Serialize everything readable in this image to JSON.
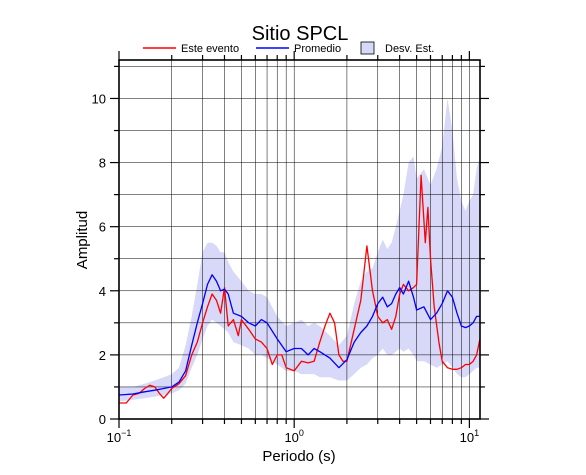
{
  "chart_data": {
    "type": "line",
    "title": "Sitio SPCL",
    "xlabel": "Periodo (s)",
    "ylabel": "Amplitud",
    "x_scale": "log",
    "xlim": [
      0.1,
      11.5
    ],
    "ylim": [
      0,
      11.2
    ],
    "grid": true,
    "legend_position": "top",
    "x_ticks": [
      {
        "value": 0.1,
        "base": "10",
        "exp": "−1"
      },
      {
        "value": 1,
        "base": "10",
        "exp": "0"
      },
      {
        "value": 10,
        "base": "10",
        "exp": "1"
      }
    ],
    "y_ticks": [
      0,
      2,
      4,
      6,
      8,
      10
    ],
    "legend": {
      "este_evento": "Este evento",
      "promedio": "Promedio",
      "desv_est": "Desv. Est."
    },
    "colors": {
      "este_evento": "#ff0000",
      "promedio": "#0000ff",
      "band_fill": "#d8d8f8",
      "band_stroke": "#000000"
    },
    "series": [
      {
        "name": "Este evento",
        "color": "#ff0000",
        "points": [
          [
            0.1,
            0.5
          ],
          [
            0.11,
            0.5
          ],
          [
            0.12,
            0.75
          ],
          [
            0.13,
            0.8
          ],
          [
            0.14,
            0.95
          ],
          [
            0.15,
            1.05
          ],
          [
            0.16,
            1.0
          ],
          [
            0.17,
            0.8
          ],
          [
            0.18,
            0.65
          ],
          [
            0.19,
            0.8
          ],
          [
            0.2,
            0.95
          ],
          [
            0.22,
            1.1
          ],
          [
            0.24,
            1.35
          ],
          [
            0.26,
            2.0
          ],
          [
            0.28,
            2.4
          ],
          [
            0.3,
            3.0
          ],
          [
            0.32,
            3.5
          ],
          [
            0.34,
            3.9
          ],
          [
            0.36,
            3.7
          ],
          [
            0.38,
            3.3
          ],
          [
            0.4,
            4.1
          ],
          [
            0.42,
            2.9
          ],
          [
            0.45,
            3.1
          ],
          [
            0.48,
            2.6
          ],
          [
            0.5,
            3.1
          ],
          [
            0.55,
            2.8
          ],
          [
            0.6,
            2.5
          ],
          [
            0.65,
            2.4
          ],
          [
            0.7,
            2.2
          ],
          [
            0.75,
            1.7
          ],
          [
            0.8,
            2.0
          ],
          [
            0.85,
            2.0
          ],
          [
            0.9,
            1.6
          ],
          [
            1.0,
            1.5
          ],
          [
            1.1,
            1.8
          ],
          [
            1.2,
            1.75
          ],
          [
            1.3,
            1.8
          ],
          [
            1.4,
            2.4
          ],
          [
            1.5,
            2.9
          ],
          [
            1.6,
            3.3
          ],
          [
            1.7,
            3.0
          ],
          [
            1.8,
            2.0
          ],
          [
            1.9,
            1.8
          ],
          [
            2.0,
            1.8
          ],
          [
            2.2,
            2.8
          ],
          [
            2.4,
            3.7
          ],
          [
            2.6,
            5.4
          ],
          [
            2.8,
            4.0
          ],
          [
            3.0,
            3.2
          ],
          [
            3.2,
            3.0
          ],
          [
            3.4,
            3.1
          ],
          [
            3.6,
            2.8
          ],
          [
            3.8,
            3.2
          ],
          [
            4.0,
            3.9
          ],
          [
            4.2,
            4.2
          ],
          [
            4.5,
            4.0
          ],
          [
            4.8,
            4.1
          ],
          [
            5.0,
            4.2
          ],
          [
            5.3,
            7.6
          ],
          [
            5.6,
            5.5
          ],
          [
            5.8,
            6.6
          ],
          [
            6.0,
            5.0
          ],
          [
            6.3,
            3.5
          ],
          [
            6.7,
            2.4
          ],
          [
            7.0,
            1.8
          ],
          [
            7.5,
            1.6
          ],
          [
            8.0,
            1.55
          ],
          [
            8.5,
            1.55
          ],
          [
            9.0,
            1.6
          ],
          [
            9.5,
            1.7
          ],
          [
            10.0,
            1.7
          ],
          [
            10.5,
            1.8
          ],
          [
            11.0,
            2.0
          ],
          [
            11.5,
            2.5
          ]
        ]
      },
      {
        "name": "Promedio",
        "color": "#0000ff",
        "points": [
          [
            0.1,
            0.75
          ],
          [
            0.12,
            0.78
          ],
          [
            0.14,
            0.85
          ],
          [
            0.16,
            0.9
          ],
          [
            0.18,
            0.95
          ],
          [
            0.2,
            1.0
          ],
          [
            0.22,
            1.15
          ],
          [
            0.24,
            1.5
          ],
          [
            0.26,
            2.3
          ],
          [
            0.28,
            3.0
          ],
          [
            0.3,
            3.6
          ],
          [
            0.32,
            4.2
          ],
          [
            0.34,
            4.5
          ],
          [
            0.36,
            4.3
          ],
          [
            0.38,
            4.0
          ],
          [
            0.4,
            4.05
          ],
          [
            0.42,
            3.9
          ],
          [
            0.45,
            3.3
          ],
          [
            0.5,
            3.2
          ],
          [
            0.55,
            3.0
          ],
          [
            0.6,
            2.9
          ],
          [
            0.65,
            3.1
          ],
          [
            0.7,
            3.0
          ],
          [
            0.8,
            2.5
          ],
          [
            0.9,
            2.1
          ],
          [
            1.0,
            2.2
          ],
          [
            1.1,
            2.2
          ],
          [
            1.2,
            2.0
          ],
          [
            1.3,
            2.2
          ],
          [
            1.4,
            2.1
          ],
          [
            1.6,
            1.9
          ],
          [
            1.8,
            1.6
          ],
          [
            2.0,
            1.85
          ],
          [
            2.2,
            2.4
          ],
          [
            2.4,
            2.7
          ],
          [
            2.6,
            2.9
          ],
          [
            2.8,
            3.2
          ],
          [
            3.0,
            3.6
          ],
          [
            3.2,
            3.8
          ],
          [
            3.4,
            3.5
          ],
          [
            3.6,
            3.6
          ],
          [
            3.8,
            3.9
          ],
          [
            4.0,
            4.1
          ],
          [
            4.2,
            3.9
          ],
          [
            4.5,
            4.3
          ],
          [
            4.8,
            3.8
          ],
          [
            5.0,
            3.4
          ],
          [
            5.5,
            3.5
          ],
          [
            6.0,
            3.1
          ],
          [
            6.5,
            3.3
          ],
          [
            7.0,
            3.6
          ],
          [
            7.5,
            4.0
          ],
          [
            8.0,
            3.8
          ],
          [
            8.5,
            3.3
          ],
          [
            9.0,
            2.9
          ],
          [
            9.5,
            2.85
          ],
          [
            10.0,
            2.9
          ],
          [
            10.5,
            3.0
          ],
          [
            11.0,
            3.2
          ],
          [
            11.5,
            3.2
          ]
        ]
      }
    ],
    "band": {
      "name": "Desv. Est.",
      "points": [
        [
          0.1,
          0.55,
          1.0
        ],
        [
          0.12,
          0.6,
          1.0
        ],
        [
          0.14,
          0.65,
          1.1
        ],
        [
          0.16,
          0.7,
          1.2
        ],
        [
          0.18,
          0.75,
          1.3
        ],
        [
          0.2,
          0.8,
          1.4
        ],
        [
          0.22,
          0.9,
          1.6
        ],
        [
          0.24,
          1.1,
          2.3
        ],
        [
          0.26,
          1.6,
          3.2
        ],
        [
          0.28,
          2.0,
          4.2
        ],
        [
          0.3,
          2.5,
          5.2
        ],
        [
          0.32,
          2.9,
          5.5
        ],
        [
          0.34,
          3.1,
          5.5
        ],
        [
          0.36,
          3.0,
          5.4
        ],
        [
          0.38,
          2.9,
          5.2
        ],
        [
          0.4,
          2.8,
          5.2
        ],
        [
          0.42,
          2.7,
          4.9
        ],
        [
          0.45,
          2.4,
          4.6
        ],
        [
          0.5,
          2.3,
          4.3
        ],
        [
          0.55,
          2.2,
          4.0
        ],
        [
          0.6,
          2.0,
          3.9
        ],
        [
          0.65,
          2.0,
          3.9
        ],
        [
          0.7,
          1.9,
          3.8
        ],
        [
          0.8,
          1.7,
          3.2
        ],
        [
          0.9,
          1.5,
          2.9
        ],
        [
          1.0,
          1.5,
          3.0
        ],
        [
          1.1,
          1.4,
          3.1
        ],
        [
          1.2,
          1.4,
          2.9
        ],
        [
          1.3,
          1.4,
          3.0
        ],
        [
          1.4,
          1.3,
          2.9
        ],
        [
          1.6,
          1.3,
          2.6
        ],
        [
          1.8,
          1.2,
          2.3
        ],
        [
          2.0,
          1.2,
          2.6
        ],
        [
          2.2,
          1.4,
          3.6
        ],
        [
          2.4,
          1.6,
          4.3
        ],
        [
          2.6,
          1.7,
          4.6
        ],
        [
          2.8,
          1.9,
          4.7
        ],
        [
          3.0,
          2.0,
          5.2
        ],
        [
          3.2,
          2.2,
          5.6
        ],
        [
          3.4,
          2.0,
          5.3
        ],
        [
          3.6,
          2.0,
          5.5
        ],
        [
          3.8,
          2.1,
          6.0
        ],
        [
          4.0,
          2.2,
          6.5
        ],
        [
          4.2,
          2.1,
          7.0
        ],
        [
          4.5,
          2.2,
          8.0
        ],
        [
          4.8,
          2.0,
          8.2
        ],
        [
          5.0,
          1.8,
          7.5
        ],
        [
          5.5,
          1.8,
          7.8
        ],
        [
          6.0,
          1.7,
          7.3
        ],
        [
          6.5,
          1.6,
          7.8
        ],
        [
          7.0,
          1.7,
          8.5
        ],
        [
          7.5,
          1.8,
          10.0
        ],
        [
          8.0,
          1.6,
          9.0
        ],
        [
          8.5,
          1.4,
          7.5
        ],
        [
          9.0,
          1.3,
          6.8
        ],
        [
          9.5,
          1.3,
          6.5
        ],
        [
          10.0,
          1.4,
          6.8
        ],
        [
          10.5,
          1.5,
          7.0
        ],
        [
          11.0,
          1.6,
          7.8
        ],
        [
          11.5,
          1.6,
          8.2
        ]
      ]
    }
  }
}
